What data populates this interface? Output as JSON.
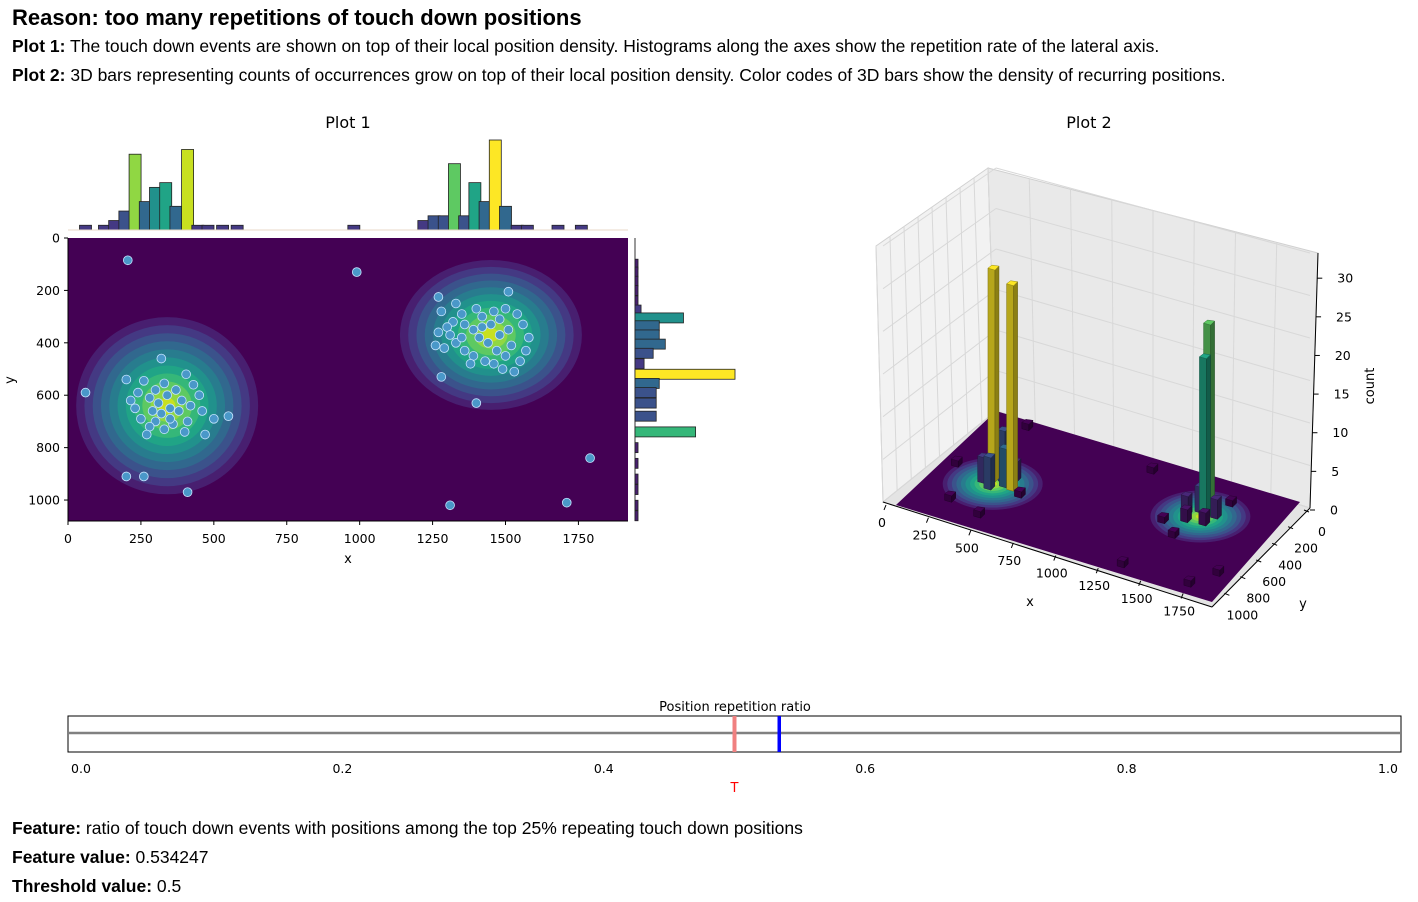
{
  "header": {
    "title": "Reason: too many repetitions of touch down positions",
    "plot1_label": "Plot 1:",
    "plot1_text": " The touch down events are shown on top of their local position density. Histograms along the axes show the repetition rate of the lateral axis.",
    "plot2_label": "Plot 2:",
    "plot2_text": " 3D bars representing counts of occurrences grow on top of their local position density. Color codes of 3D bars show the density of recurring positions."
  },
  "footer": {
    "feature_label": "Feature:",
    "feature_text": " ratio of touch down events with positions among the top 25% repeating touch down positions",
    "value_label": "Feature value:",
    "value_text": " 0.534247",
    "threshold_label": "Threshold value:",
    "threshold_text": " 0.5"
  },
  "colors": {
    "density_bg": "#440154",
    "point_fill": "#4a98c9",
    "point_edge": "#c6e5ff",
    "threshold_line": "#f08080",
    "value_line": "#0000ff",
    "axis_line": "#808080"
  },
  "chart_data": [
    {
      "type": "scatter",
      "title": "Plot 1",
      "xlabel": "x",
      "ylabel": "y",
      "xlim": [
        0,
        1920
      ],
      "ylim": [
        1080,
        0
      ],
      "xticks": [
        "0",
        "250",
        "500",
        "750",
        "1000",
        "1250",
        "1500",
        "1750"
      ],
      "yticks": [
        "0",
        "200",
        "400",
        "600",
        "800",
        "1000"
      ],
      "density_clusters": [
        {
          "x": 340,
          "y": 640,
          "sx": 120,
          "sy": 130
        },
        {
          "x": 1450,
          "y": 370,
          "sx": 120,
          "sy": 110
        }
      ],
      "points": [
        [
          205,
          85
        ],
        [
          990,
          130
        ],
        [
          60,
          590
        ],
        [
          200,
          910
        ],
        [
          260,
          910
        ],
        [
          410,
          970
        ],
        [
          1310,
          1020
        ],
        [
          1710,
          1010
        ],
        [
          1790,
          840
        ],
        [
          1510,
          205
        ],
        [
          1400,
          630
        ],
        [
          1280,
          530
        ],
        [
          320,
          460
        ],
        [
          405,
          520
        ],
        [
          500,
          690
        ],
        [
          550,
          680
        ],
        [
          470,
          750
        ],
        [
          200,
          540
        ],
        [
          260,
          545
        ],
        [
          330,
          555
        ],
        [
          300,
          580
        ],
        [
          340,
          600
        ],
        [
          280,
          610
        ],
        [
          390,
          620
        ],
        [
          420,
          640
        ],
        [
          350,
          650
        ],
        [
          320,
          670
        ],
        [
          380,
          660
        ],
        [
          300,
          700
        ],
        [
          360,
          710
        ],
        [
          410,
          700
        ],
        [
          280,
          720
        ],
        [
          250,
          690
        ],
        [
          230,
          650
        ],
        [
          450,
          600
        ],
        [
          460,
          660
        ],
        [
          330,
          730
        ],
        [
          270,
          750
        ],
        [
          400,
          740
        ],
        [
          350,
          690
        ],
        [
          310,
          630
        ],
        [
          370,
          580
        ],
        [
          240,
          590
        ],
        [
          430,
          560
        ],
        [
          290,
          660
        ],
        [
          215,
          620
        ],
        [
          1270,
          225
        ],
        [
          1280,
          280
        ],
        [
          1330,
          250
        ],
        [
          1350,
          290
        ],
        [
          1400,
          270
        ],
        [
          1420,
          300
        ],
        [
          1460,
          280
        ],
        [
          1480,
          310
        ],
        [
          1500,
          270
        ],
        [
          1540,
          290
        ],
        [
          1560,
          330
        ],
        [
          1580,
          380
        ],
        [
          1520,
          410
        ],
        [
          1500,
          450
        ],
        [
          1470,
          430
        ],
        [
          1440,
          400
        ],
        [
          1410,
          380
        ],
        [
          1390,
          350
        ],
        [
          1360,
          330
        ],
        [
          1320,
          320
        ],
        [
          1300,
          340
        ],
        [
          1270,
          360
        ],
        [
          1260,
          410
        ],
        [
          1290,
          420
        ],
        [
          1330,
          400
        ],
        [
          1360,
          430
        ],
        [
          1390,
          450
        ],
        [
          1430,
          470
        ],
        [
          1460,
          480
        ],
        [
          1490,
          500
        ],
        [
          1530,
          510
        ],
        [
          1550,
          470
        ],
        [
          1570,
          430
        ],
        [
          1380,
          480
        ],
        [
          1420,
          340
        ],
        [
          1480,
          370
        ],
        [
          1450,
          330
        ],
        [
          1510,
          350
        ],
        [
          1350,
          380
        ],
        [
          1310,
          370
        ]
      ],
      "x_hist": {
        "bins": [
          60,
          125,
          160,
          195,
          230,
          265,
          300,
          335,
          370,
          410,
          445,
          480,
          530,
          580,
          980,
          1220,
          1255,
          1290,
          1325,
          1360,
          1395,
          1430,
          1465,
          1500,
          1540,
          1575,
          1680,
          1760
        ],
        "counts": [
          1,
          1,
          2,
          4,
          16,
          6,
          9,
          10,
          5,
          17,
          1,
          1,
          1,
          1,
          1,
          2,
          3,
          3,
          14,
          3,
          10,
          6,
          19,
          5,
          1,
          1,
          1,
          1
        ],
        "ymax": 19
      },
      "y_hist": {
        "bins": [
          100,
          130,
          165,
          200,
          240,
          275,
          305,
          335,
          370,
          405,
          440,
          480,
          520,
          555,
          590,
          630,
          680,
          740,
          800,
          860,
          920,
          960,
          1020,
          1060
        ],
        "counts": [
          1,
          1,
          1,
          1,
          1,
          2,
          16,
          8,
          8,
          10,
          6,
          3,
          33,
          8,
          7,
          7,
          7,
          20,
          1,
          1,
          1,
          1,
          1,
          1
        ],
        "xmax": 33
      }
    },
    {
      "type": "bar",
      "title": "Plot 2",
      "xlabel": "x",
      "ylabel": "y",
      "zlabel": "count",
      "xticks": [
        "0",
        "250",
        "500",
        "750",
        "1000",
        "1250",
        "1500",
        "1750"
      ],
      "yticks": [
        "0",
        "200",
        "400",
        "600",
        "800",
        "1000"
      ],
      "zticks": [
        "0",
        "5",
        "10",
        "15",
        "20",
        "25",
        "30"
      ],
      "zlim": [
        0,
        33
      ],
      "bars": [
        {
          "x": 300,
          "y": 620,
          "z": 33,
          "color": "#fde725"
        },
        {
          "x": 430,
          "y": 650,
          "z": 32,
          "color": "#fde725"
        },
        {
          "x": 1430,
          "y": 300,
          "z": 29,
          "color": "#5ec962"
        },
        {
          "x": 1450,
          "y": 380,
          "z": 25,
          "color": "#21a585"
        },
        {
          "x": 350,
          "y": 600,
          "z": 8,
          "color": "#3b528b"
        },
        {
          "x": 380,
          "y": 640,
          "z": 6,
          "color": "#31688e"
        },
        {
          "x": 260,
          "y": 660,
          "z": 4,
          "color": "#443983"
        },
        {
          "x": 320,
          "y": 700,
          "z": 5,
          "color": "#3b528b"
        },
        {
          "x": 400,
          "y": 560,
          "z": 3,
          "color": "#482878"
        },
        {
          "x": 1400,
          "y": 340,
          "z": 4,
          "color": "#443983"
        },
        {
          "x": 1500,
          "y": 350,
          "z": 3,
          "color": "#482878"
        },
        {
          "x": 1350,
          "y": 400,
          "z": 3,
          "color": "#482878"
        },
        {
          "x": 1480,
          "y": 440,
          "z": 2,
          "color": "#471365"
        },
        {
          "x": 1380,
          "y": 460,
          "z": 2,
          "color": "#471365"
        },
        {
          "x": 990,
          "y": 130,
          "z": 1,
          "color": "#440154"
        },
        {
          "x": 205,
          "y": 85,
          "z": 1,
          "color": "#440154"
        },
        {
          "x": 200,
          "y": 910,
          "z": 1,
          "color": "#440154"
        },
        {
          "x": 410,
          "y": 970,
          "z": 1,
          "color": "#440154"
        },
        {
          "x": 1310,
          "y": 1020,
          "z": 1,
          "color": "#440154"
        },
        {
          "x": 1710,
          "y": 1010,
          "z": 1,
          "color": "#440154"
        },
        {
          "x": 1790,
          "y": 840,
          "z": 1,
          "color": "#440154"
        },
        {
          "x": 60,
          "y": 590,
          "z": 1,
          "color": "#440154"
        },
        {
          "x": 1510,
          "y": 205,
          "z": 1,
          "color": "#440154"
        },
        {
          "x": 1280,
          "y": 530,
          "z": 1,
          "color": "#440154"
        },
        {
          "x": 500,
          "y": 690,
          "z": 1,
          "color": "#440154"
        },
        {
          "x": 1400,
          "y": 630,
          "z": 1,
          "color": "#440154"
        }
      ]
    },
    {
      "type": "line",
      "title": "Position repetition ratio",
      "xlim": [
        0,
        1
      ],
      "xticks": [
        "0.0",
        "0.2",
        "0.4",
        "0.6",
        "0.8",
        "1.0"
      ],
      "feature_value": 0.534247,
      "threshold": 0.5,
      "threshold_label": "T"
    }
  ]
}
